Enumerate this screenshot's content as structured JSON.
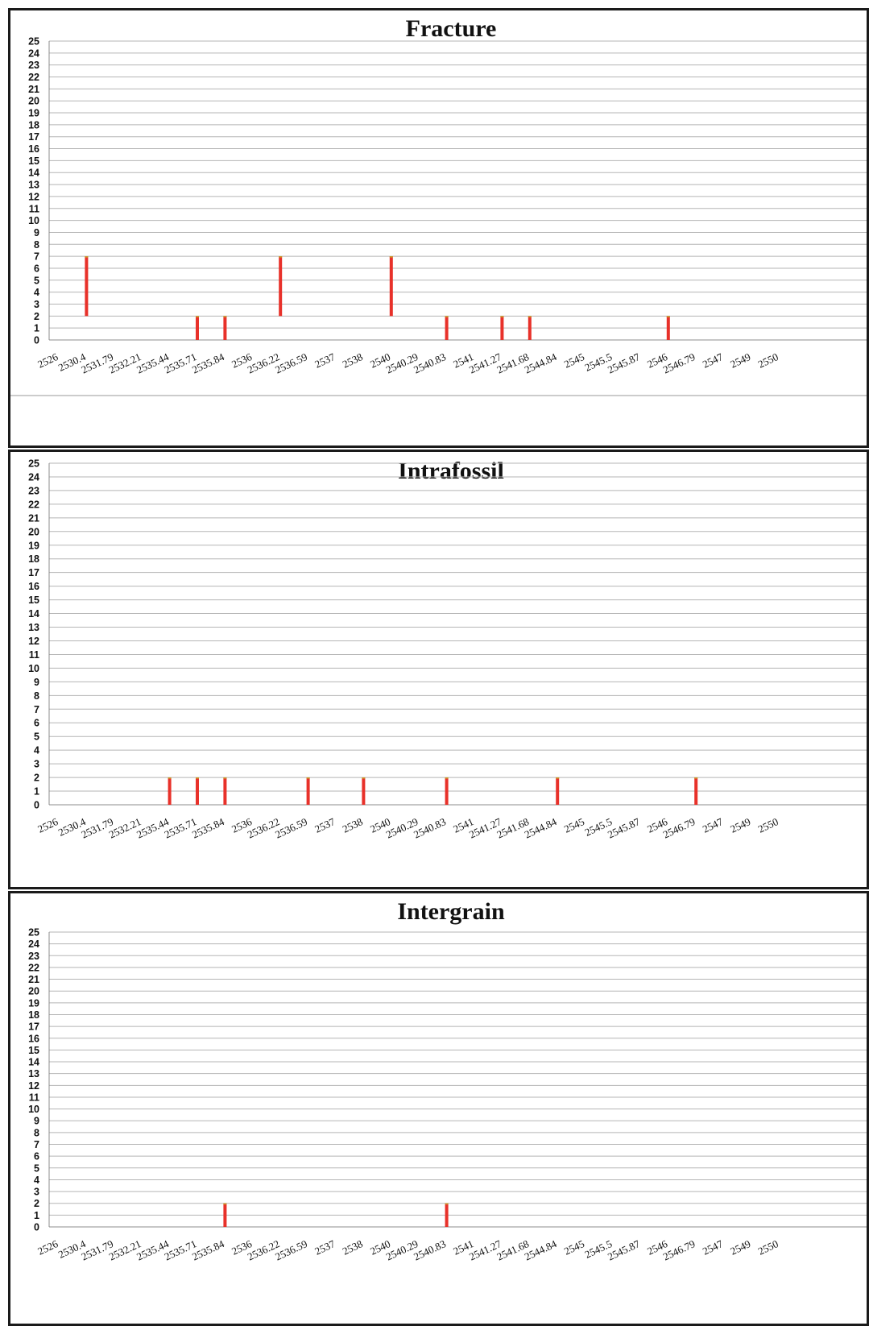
{
  "chart_data": [
    {
      "type": "bar",
      "title": "Fracture",
      "xlabel": "",
      "ylabel": "",
      "ylim": [
        0,
        25
      ],
      "grid": true,
      "bar_color": "#e8312a",
      "categories": [
        "2526",
        "2530.4",
        "2531.79",
        "2532.21",
        "2535.44",
        "2535.71",
        "2535.84",
        "2536",
        "2536.22",
        "2536.59",
        "2537",
        "2538",
        "2540",
        "2540.29",
        "2540.83",
        "2541",
        "2541.27",
        "2541.68",
        "2544.84",
        "2545",
        "2545.5",
        "2545.87",
        "2546",
        "2546.79",
        "2547",
        "2549",
        "2550"
      ],
      "ranges": [
        {
          "category": "2530.4",
          "low": 2,
          "high": 7
        },
        {
          "category": "2535.71",
          "low": 0,
          "high": 2
        },
        {
          "category": "2535.84",
          "low": 0,
          "high": 2
        },
        {
          "category": "2536.22",
          "low": 2,
          "high": 7
        },
        {
          "category": "2540",
          "low": 2,
          "high": 7
        },
        {
          "category": "2540.83",
          "low": 0,
          "high": 2
        },
        {
          "category": "2541.27",
          "low": 0,
          "high": 2
        },
        {
          "category": "2541.68",
          "low": 0,
          "high": 2
        },
        {
          "category": "2546",
          "low": 0,
          "high": 2
        }
      ]
    },
    {
      "type": "bar",
      "title": "Intrafossil",
      "xlabel": "",
      "ylabel": "",
      "ylim": [
        0,
        25
      ],
      "grid": true,
      "bar_color": "#e8312a",
      "categories": [
        "2526",
        "2530.4",
        "2531.79",
        "2532.21",
        "2535.44",
        "2535.71",
        "2535.84",
        "2536",
        "2536.22",
        "2536.59",
        "2537",
        "2538",
        "2540",
        "2540.29",
        "2540.83",
        "2541",
        "2541.27",
        "2541.68",
        "2544.84",
        "2545",
        "2545.5",
        "2545.87",
        "2546",
        "2546.79",
        "2547",
        "2549",
        "2550"
      ],
      "ranges": [
        {
          "category": "2535.44",
          "low": 0,
          "high": 2
        },
        {
          "category": "2535.71",
          "low": 0,
          "high": 2
        },
        {
          "category": "2535.84",
          "low": 0,
          "high": 2
        },
        {
          "category": "2536.59",
          "low": 0,
          "high": 2
        },
        {
          "category": "2538",
          "low": 0,
          "high": 2
        },
        {
          "category": "2540.83",
          "low": 0,
          "high": 2
        },
        {
          "category": "2544.84",
          "low": 0,
          "high": 2
        },
        {
          "category": "2546.79",
          "low": 0,
          "high": 2
        }
      ]
    },
    {
      "type": "bar",
      "title": "Intergrain",
      "xlabel": "",
      "ylabel": "",
      "ylim": [
        0,
        25
      ],
      "grid": true,
      "bar_color": "#e8312a",
      "categories": [
        "2526",
        "2530.4",
        "2531.79",
        "2532.21",
        "2535.44",
        "2535.71",
        "2535.84",
        "2536",
        "2536.22",
        "2536.59",
        "2537",
        "2538",
        "2540",
        "2540.29",
        "2540.83",
        "2541",
        "2541.27",
        "2541.68",
        "2544.84",
        "2545",
        "2545.5",
        "2545.87",
        "2546",
        "2546.79",
        "2547",
        "2549",
        "2550"
      ],
      "ranges": [
        {
          "category": "2535.84",
          "low": 0,
          "high": 2
        },
        {
          "category": "2540.83",
          "low": 0,
          "high": 2
        }
      ]
    }
  ]
}
